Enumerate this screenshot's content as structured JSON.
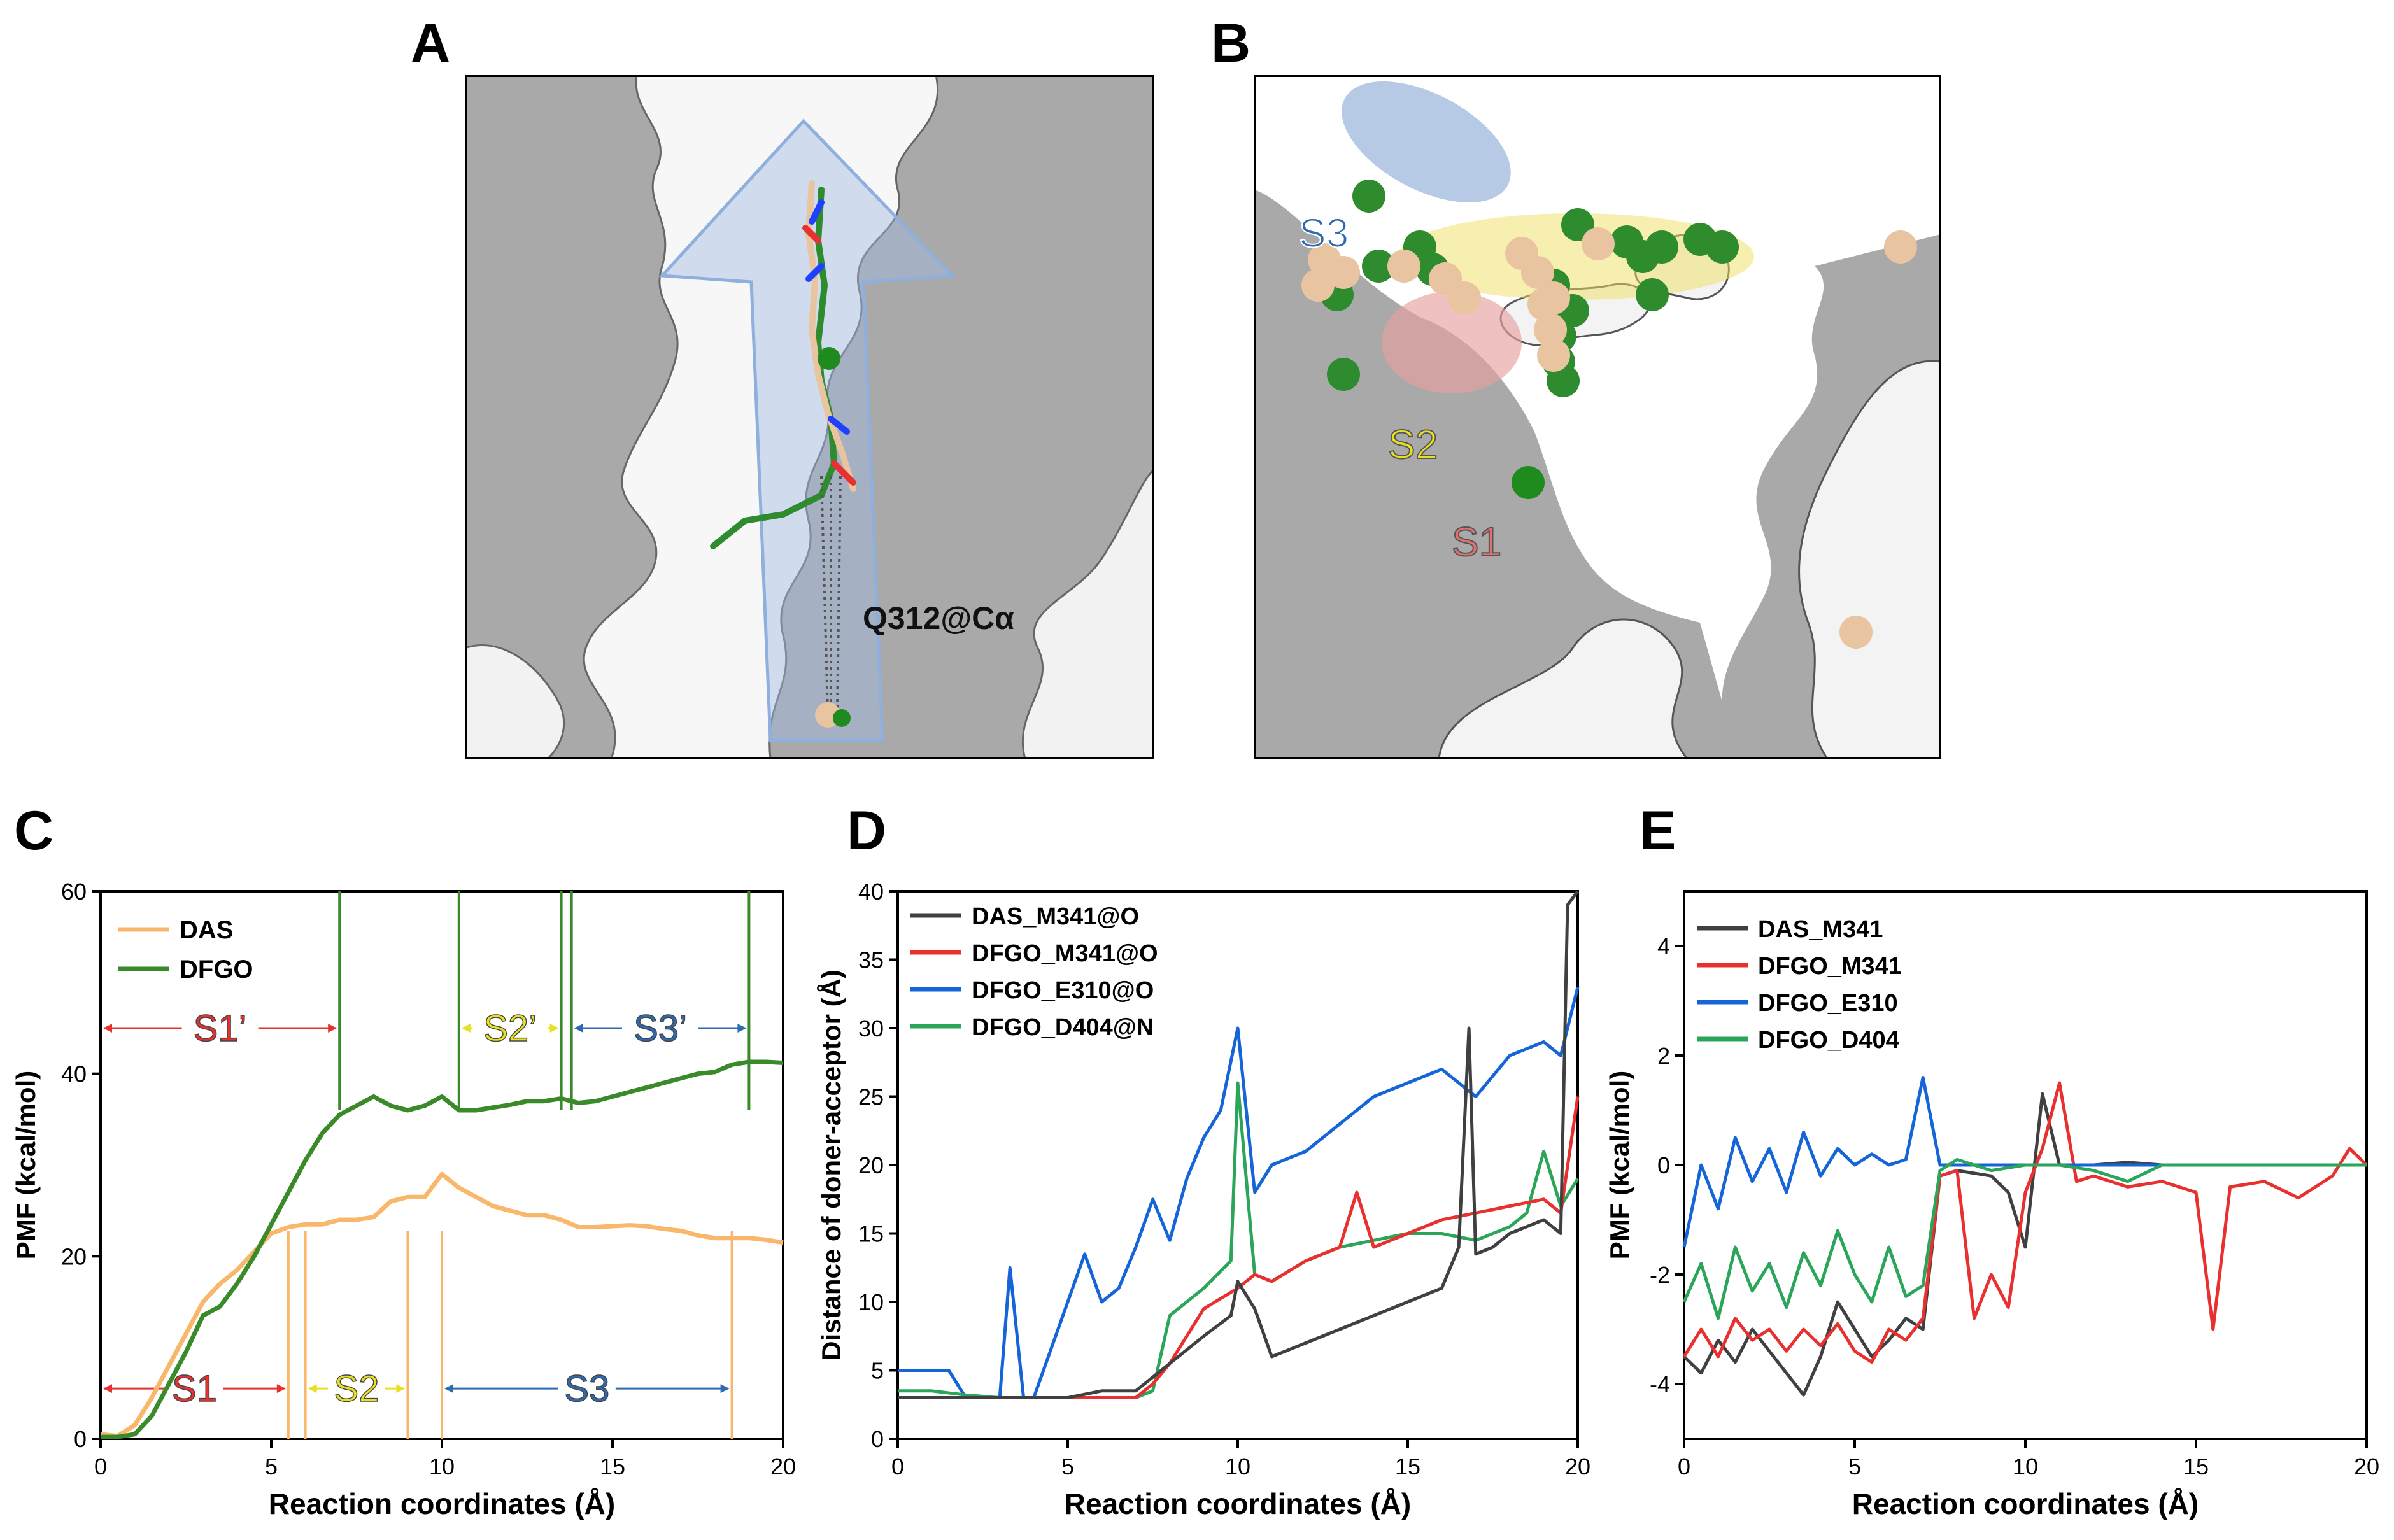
{
  "panels": {
    "a": {
      "letter": "A",
      "residue_label": "Q312@Cα"
    },
    "b": {
      "letter": "B",
      "site_labels": [
        "S3",
        "S2",
        "S1"
      ]
    },
    "c": {
      "letter": "C"
    },
    "d": {
      "letter": "D"
    },
    "e": {
      "letter": "E"
    }
  },
  "colors": {
    "das": "#f9b76b",
    "dfgo": "#3a8a2a",
    "black": "#404040",
    "red": "#e8302e",
    "blue": "#1565d8",
    "green": "#2aa55a",
    "s1": "#e07070",
    "s2": "#e8e020",
    "s3": "#2d6ab0"
  },
  "chart_data": [
    {
      "panel": "C",
      "type": "line",
      "xlabel": "Reaction coordinates (Å)",
      "ylabel": "PMF (kcal/mol)",
      "xlim": [
        0,
        20
      ],
      "ylim": [
        0,
        60
      ],
      "xticks": [
        "0",
        "5",
        "10",
        "15",
        "20"
      ],
      "yticks": [
        "0",
        "20",
        "40",
        "60"
      ],
      "legend": [
        "DAS",
        "DFGO"
      ],
      "series": [
        {
          "name": "DAS",
          "x": [
            0,
            0.5,
            1,
            1.5,
            2,
            2.5,
            3,
            3.5,
            4,
            4.5,
            5,
            5.5,
            6,
            6.5,
            7,
            7.5,
            8,
            8.5,
            9,
            9.5,
            10,
            10.5,
            11,
            11.5,
            12,
            12.5,
            13,
            13.5,
            14,
            14.5,
            15,
            15.5,
            16,
            16.5,
            17,
            17.5,
            18,
            18.5,
            19,
            19.5,
            20
          ],
          "y": [
            0.5,
            0.3,
            1.5,
            4.5,
            8,
            11.5,
            15,
            17,
            18.5,
            20.5,
            22.5,
            23.2,
            23.5,
            23.5,
            24,
            24,
            24.3,
            26,
            26.5,
            26.5,
            29,
            27.5,
            26.5,
            25.5,
            25,
            24.5,
            24.5,
            24,
            23.2,
            23.2,
            23.3,
            23.4,
            23.3,
            23,
            22.8,
            22.3,
            22,
            22,
            22,
            21.8,
            21.5
          ]
        },
        {
          "name": "DFGO",
          "x": [
            0,
            0.5,
            1,
            1.5,
            2,
            2.5,
            3,
            3.5,
            4,
            4.5,
            5,
            5.5,
            6,
            6.5,
            7,
            7.5,
            8,
            8.5,
            9,
            9.5,
            10,
            10.5,
            11,
            11.5,
            12,
            12.5,
            13,
            13.5,
            14,
            14.5,
            15,
            15.5,
            16,
            16.5,
            17,
            17.5,
            18,
            18.5,
            19,
            19.5,
            20
          ],
          "y": [
            0.2,
            0.2,
            0.5,
            2.5,
            6,
            9.5,
            13.5,
            14.5,
            17,
            20,
            23.5,
            27,
            30.5,
            33.5,
            35.5,
            36.5,
            37.5,
            36.5,
            36,
            36.5,
            37.5,
            36,
            36,
            36.3,
            36.6,
            37,
            37,
            37.3,
            36.8,
            37,
            37.5,
            38,
            38.5,
            39,
            39.5,
            40,
            40.2,
            41,
            41.3,
            41.3,
            41.2
          ]
        }
      ],
      "das_boundaries": [
        5.5,
        6,
        9,
        10,
        18.5
      ],
      "dfgo_boundaries": [
        7,
        10.5,
        13.5,
        13.8,
        19
      ],
      "regions": [
        {
          "label": "S1’",
          "from": 0,
          "to": 7,
          "y": 45,
          "color": "#e8302e"
        },
        {
          "label": "S2’",
          "from": 10.5,
          "to": 13.5,
          "y": 45,
          "color": "#e8e020"
        },
        {
          "label": "S3’",
          "from": 13.8,
          "to": 19,
          "y": 45,
          "color": "#2d6ab0"
        },
        {
          "label": "S1",
          "from": 0,
          "to": 5.5,
          "y": 5.5,
          "color": "#e8302e"
        },
        {
          "label": "S2",
          "from": 6,
          "to": 9,
          "y": 5.5,
          "color": "#e8e020"
        },
        {
          "label": "S3",
          "from": 10,
          "to": 18.5,
          "y": 5.5,
          "color": "#2d6ab0"
        }
      ]
    },
    {
      "panel": "D",
      "type": "line",
      "xlabel": "Reaction coordinates (Å)",
      "ylabel": "Distance of doner-acceptor (Å)",
      "xlim": [
        0,
        20
      ],
      "ylim": [
        0,
        40
      ],
      "xticks": [
        "0",
        "5",
        "10",
        "15",
        "20"
      ],
      "yticks": [
        "0",
        "5",
        "10",
        "15",
        "20",
        "25",
        "30",
        "35",
        "40"
      ],
      "series": [
        {
          "name": "DAS_M341@O",
          "x": [
            0,
            1,
            2,
            3,
            4,
            5,
            6,
            7,
            7.5,
            8,
            9,
            9.8,
            10,
            10.5,
            11,
            12,
            13,
            14,
            15,
            16,
            16.5,
            16.8,
            17,
            17.5,
            18,
            19,
            19.5,
            19.7,
            20
          ],
          "y": [
            3,
            3,
            3,
            3,
            3,
            3,
            3.5,
            3.5,
            4.5,
            5.5,
            7.5,
            9,
            11.5,
            9.5,
            6,
            7,
            8,
            9,
            10,
            11,
            14,
            30,
            13.5,
            14,
            15,
            16,
            15,
            39,
            40
          ]
        },
        {
          "name": "DFGO_M341@O",
          "x": [
            0,
            1,
            2,
            3,
            4,
            5,
            6,
            7,
            7.5,
            8,
            9,
            10,
            10.5,
            11,
            12,
            13,
            13.5,
            14,
            15,
            16,
            17,
            18,
            19,
            19.5,
            20
          ],
          "y": [
            3,
            3,
            3,
            3,
            3,
            3,
            3,
            3,
            4,
            5.5,
            9.5,
            11,
            12,
            11.5,
            13,
            14,
            18,
            14,
            15,
            16,
            16.5,
            17,
            17.5,
            16.5,
            25
          ]
        },
        {
          "name": "DFGO_E310@O",
          "x": [
            0,
            1,
            1.5,
            2,
            3,
            3.3,
            3.7,
            4,
            4.5,
            5,
            5.5,
            6,
            6.5,
            7,
            7.5,
            8,
            8.5,
            9,
            9.5,
            10,
            10.5,
            11,
            12,
            13,
            14,
            15,
            16,
            17,
            18,
            19,
            19.5,
            20
          ],
          "y": [
            5,
            5,
            5,
            3,
            3,
            12.5,
            3,
            3,
            6.5,
            10,
            13.5,
            10,
            11,
            14,
            17.5,
            14.5,
            19,
            22,
            24,
            30,
            18,
            20,
            21,
            23,
            25,
            26,
            27,
            25,
            28,
            29,
            28,
            33
          ]
        },
        {
          "name": "DFGO_D404@N",
          "x": [
            0,
            1,
            2,
            3,
            4,
            5,
            6,
            7,
            7.5,
            8,
            9,
            9.8,
            10,
            10.5,
            11,
            12,
            13,
            14,
            15,
            16,
            17,
            18,
            18.5,
            19,
            19.5,
            20
          ],
          "y": [
            3.5,
            3.5,
            3.2,
            3,
            3,
            3,
            3,
            3,
            3.5,
            9,
            11,
            13,
            26,
            12,
            11.5,
            13,
            14,
            14.5,
            15,
            15,
            14.5,
            15.5,
            16.5,
            21,
            17,
            19
          ]
        }
      ]
    },
    {
      "panel": "E",
      "type": "line",
      "xlabel": "Reaction coordinates (Å)",
      "ylabel": "PMF (kcal/mol)",
      "xlim": [
        0,
        20
      ],
      "ylim": [
        -5,
        5
      ],
      "xticks": [
        "0",
        "5",
        "10",
        "15",
        "20"
      ],
      "yticks": [
        "-4",
        "-2",
        "0",
        "2",
        "4"
      ],
      "series": [
        {
          "name": "DAS_M341",
          "x": [
            0,
            0.5,
            1,
            1.5,
            2,
            2.5,
            3,
            3.5,
            4,
            4.5,
            5,
            5.5,
            6,
            6.5,
            7,
            7.5,
            8,
            9,
            9.5,
            10,
            10.5,
            11,
            12,
            13,
            14,
            15,
            16,
            17,
            18,
            19,
            20
          ],
          "y": [
            -3.5,
            -3.8,
            -3.2,
            -3.6,
            -3,
            -3.4,
            -3.8,
            -4.2,
            -3.5,
            -2.5,
            -3,
            -3.5,
            -3.2,
            -2.8,
            -3,
            -0.2,
            -0.1,
            -0.2,
            -0.5,
            -1.5,
            1.3,
            0,
            0,
            0.05,
            0,
            0,
            0,
            0,
            0,
            0,
            0
          ]
        },
        {
          "name": "DFGO_M341",
          "x": [
            0,
            0.5,
            1,
            1.5,
            2,
            2.5,
            3,
            3.5,
            4,
            4.5,
            5,
            5.5,
            6,
            6.5,
            7,
            7.5,
            8,
            8.5,
            9,
            9.5,
            10,
            10.5,
            11,
            11.5,
            12,
            13,
            14,
            15,
            15.5,
            16,
            17,
            18,
            19,
            19.5,
            20
          ],
          "y": [
            -3.5,
            -3,
            -3.5,
            -2.8,
            -3.2,
            -3,
            -3.4,
            -3,
            -3.3,
            -2.9,
            -3.4,
            -3.6,
            -3,
            -3.2,
            -2.8,
            -0.2,
            -0.1,
            -2.8,
            -2,
            -2.6,
            -0.5,
            0.3,
            1.5,
            -0.3,
            -0.2,
            -0.4,
            -0.3,
            -0.5,
            -3,
            -0.4,
            -0.3,
            -0.6,
            -0.2,
            0.3,
            0
          ]
        },
        {
          "name": "DFGO_E310",
          "x": [
            0,
            0.5,
            1,
            1.5,
            2,
            2.5,
            3,
            3.5,
            4,
            4.5,
            5,
            5.5,
            6,
            6.5,
            7,
            7.5,
            8,
            9,
            10,
            12,
            14,
            16,
            18,
            20
          ],
          "y": [
            -1.5,
            0,
            -0.8,
            0.5,
            -0.3,
            0.3,
            -0.5,
            0.6,
            -0.2,
            0.3,
            0,
            0.2,
            0,
            0.1,
            1.6,
            0,
            0,
            0,
            0,
            0,
            0,
            0,
            0,
            0
          ]
        },
        {
          "name": "DFGO_D404",
          "x": [
            0,
            0.5,
            1,
            1.5,
            2,
            2.5,
            3,
            3.5,
            4,
            4.5,
            5,
            5.5,
            6,
            6.5,
            7,
            7.5,
            8,
            9,
            10,
            11,
            12,
            13,
            14,
            16,
            18,
            20
          ],
          "y": [
            -2.5,
            -1.8,
            -2.8,
            -1.5,
            -2.3,
            -1.8,
            -2.6,
            -1.6,
            -2.2,
            -1.2,
            -2,
            -2.5,
            -1.5,
            -2.4,
            -2.2,
            -0.1,
            0.1,
            -0.1,
            0,
            0,
            -0.1,
            -0.3,
            0,
            0,
            0,
            0
          ]
        }
      ]
    }
  ]
}
